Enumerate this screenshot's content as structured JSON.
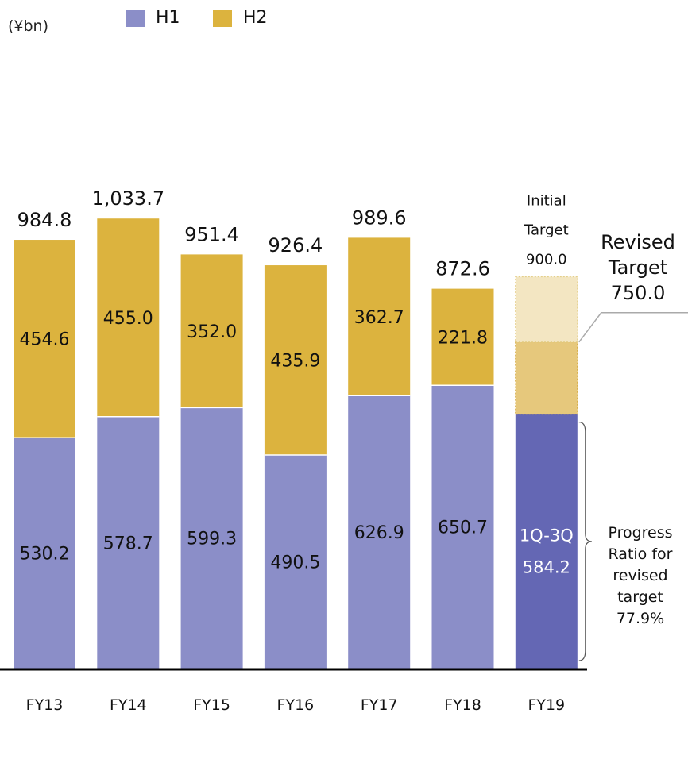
{
  "unit_label": "(¥bn)",
  "colors": {
    "h1": "#8b8ec8",
    "h2": "#dcb33e",
    "fy19_actual": "#6467b4",
    "target_initial": "#f3e6c2",
    "target_revised": "#e6c87c",
    "axis": "#000000"
  },
  "chart_data": {
    "type": "bar",
    "stacked": true,
    "unit": "(¥bn)",
    "categories": [
      "FY13",
      "FY14",
      "FY15",
      "FY16",
      "FY17",
      "FY18",
      "FY19"
    ],
    "series": [
      {
        "name": "H1",
        "values": [
          530.2,
          578.7,
          599.3,
          490.5,
          626.9,
          650.7,
          584.2
        ]
      },
      {
        "name": "H2",
        "values": [
          454.6,
          455.0,
          352.0,
          435.9,
          362.7,
          221.8,
          null
        ]
      }
    ],
    "totals": [
      "984.8",
      "1,033.7",
      "951.4",
      "926.4",
      "989.6",
      "872.6",
      null
    ],
    "h1_labels": [
      "530.2",
      "578.7",
      "599.3",
      "490.5",
      "626.9",
      "650.7",
      null
    ],
    "h2_labels": [
      "454.6",
      "455.0",
      "352.0",
      "435.9",
      "362.7",
      "221.8",
      null
    ],
    "fy19": {
      "actual_label_line1": "1Q-3Q",
      "actual_label_line2": "584.2",
      "actual_value": 584.2,
      "initial_target_line1": "Initial",
      "initial_target_line2": "Target",
      "initial_target_value_label": "900.0",
      "initial_target_value": 900.0,
      "revised_target_lines": [
        "Revised",
        "Target",
        "750.0"
      ],
      "revised_target_value": 750.0,
      "progress_lines": [
        "Progress",
        "Ratio for",
        "revised",
        "target",
        "77.9%"
      ],
      "progress_ratio": 77.9
    },
    "ylim": [
      0,
      1160
    ],
    "legend_position": "top",
    "grid": false
  }
}
